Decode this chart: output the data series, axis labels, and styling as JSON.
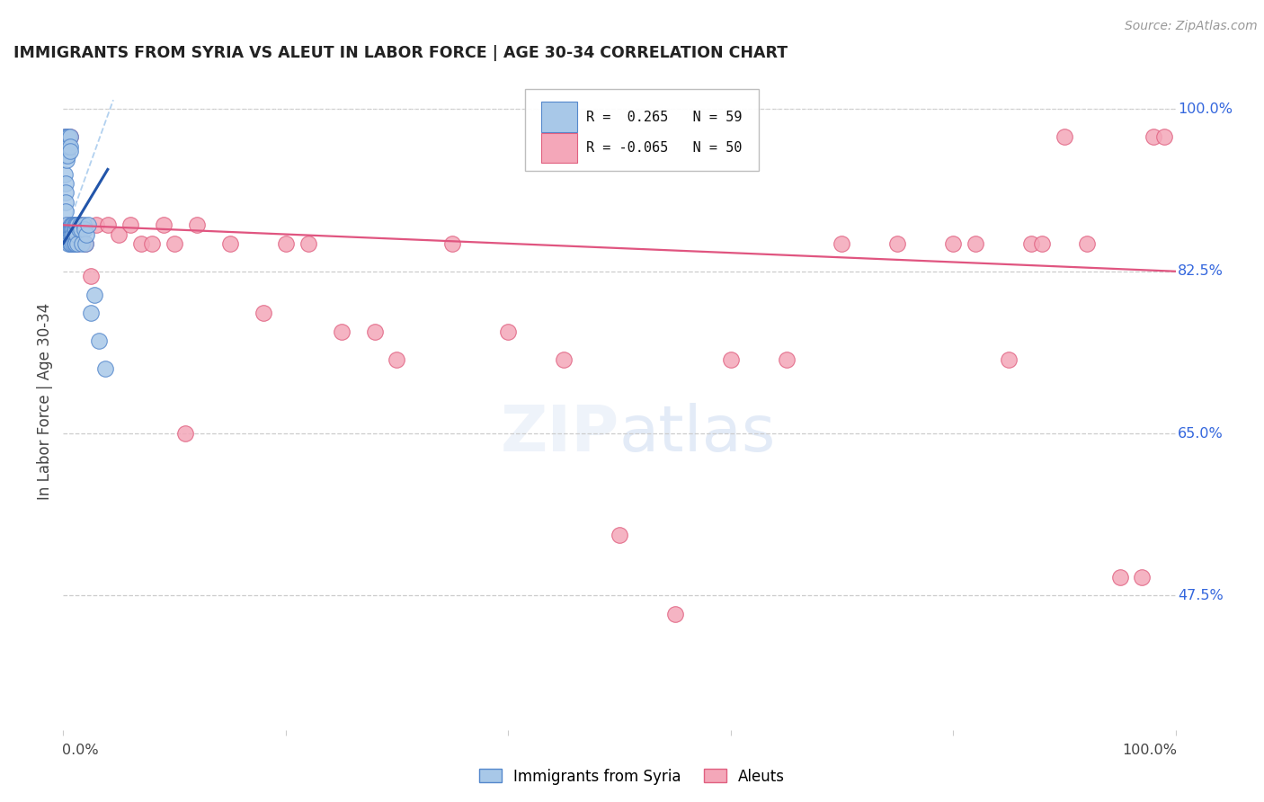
{
  "title": "IMMIGRANTS FROM SYRIA VS ALEUT IN LABOR FORCE | AGE 30-34 CORRELATION CHART",
  "source": "Source: ZipAtlas.com",
  "ylabel": "In Labor Force | Age 30-34",
  "legend_label1": "Immigrants from Syria",
  "legend_label2": "Aleuts",
  "R_syria": 0.265,
  "N_syria": 59,
  "R_aleut": -0.065,
  "N_aleut": 50,
  "xmin": 0.0,
  "xmax": 1.0,
  "ymin": 0.33,
  "ymax": 1.04,
  "right_yticks": [
    1.0,
    0.825,
    0.65,
    0.475
  ],
  "right_yticklabels": [
    "100.0%",
    "82.5%",
    "65.0%",
    "47.5%"
  ],
  "color_syria": "#A8C8E8",
  "color_aleut": "#F4A7B9",
  "color_syria_edge": "#5588CC",
  "color_aleut_edge": "#E06080",
  "color_syria_line": "#2255AA",
  "color_aleut_line": "#E05580",
  "color_ref_line": "#AACCEE",
  "background": "#FFFFFF",
  "syria_x": [
    0.001,
    0.001,
    0.001,
    0.002,
    0.002,
    0.002,
    0.002,
    0.003,
    0.003,
    0.003,
    0.003,
    0.004,
    0.004,
    0.004,
    0.004,
    0.005,
    0.005,
    0.005,
    0.005,
    0.006,
    0.006,
    0.006,
    0.006,
    0.006,
    0.007,
    0.007,
    0.007,
    0.007,
    0.008,
    0.008,
    0.008,
    0.009,
    0.009,
    0.009,
    0.009,
    0.01,
    0.01,
    0.01,
    0.01,
    0.011,
    0.011,
    0.011,
    0.012,
    0.012,
    0.013,
    0.013,
    0.014,
    0.015,
    0.016,
    0.017,
    0.018,
    0.019,
    0.02,
    0.021,
    0.022,
    0.025,
    0.028,
    0.032,
    0.038
  ],
  "syria_y": [
    0.97,
    0.95,
    0.93,
    0.92,
    0.91,
    0.9,
    0.89,
    0.97,
    0.955,
    0.945,
    0.875,
    0.96,
    0.95,
    0.87,
    0.86,
    0.97,
    0.96,
    0.87,
    0.855,
    0.97,
    0.96,
    0.955,
    0.87,
    0.855,
    0.875,
    0.87,
    0.865,
    0.855,
    0.875,
    0.87,
    0.865,
    0.875,
    0.87,
    0.865,
    0.855,
    0.875,
    0.87,
    0.865,
    0.855,
    0.875,
    0.87,
    0.855,
    0.875,
    0.865,
    0.875,
    0.855,
    0.87,
    0.875,
    0.87,
    0.855,
    0.875,
    0.87,
    0.855,
    0.865,
    0.875,
    0.78,
    0.8,
    0.75,
    0.72
  ],
  "aleut_x": [
    0.002,
    0.003,
    0.004,
    0.005,
    0.006,
    0.007,
    0.008,
    0.01,
    0.012,
    0.013,
    0.015,
    0.02,
    0.025,
    0.03,
    0.04,
    0.05,
    0.06,
    0.07,
    0.08,
    0.09,
    0.1,
    0.12,
    0.15,
    0.18,
    0.2,
    0.22,
    0.25,
    0.3,
    0.35,
    0.4,
    0.45,
    0.5,
    0.55,
    0.6,
    0.65,
    0.7,
    0.75,
    0.8,
    0.82,
    0.85,
    0.87,
    0.88,
    0.9,
    0.92,
    0.95,
    0.97,
    0.98,
    0.99,
    0.11,
    0.28
  ],
  "aleut_y": [
    0.97,
    0.97,
    0.875,
    0.97,
    0.97,
    0.855,
    0.855,
    0.875,
    0.875,
    0.855,
    0.875,
    0.855,
    0.82,
    0.875,
    0.875,
    0.865,
    0.875,
    0.855,
    0.855,
    0.875,
    0.855,
    0.875,
    0.855,
    0.78,
    0.855,
    0.855,
    0.76,
    0.73,
    0.855,
    0.76,
    0.73,
    0.54,
    0.455,
    0.73,
    0.73,
    0.855,
    0.855,
    0.855,
    0.855,
    0.73,
    0.855,
    0.855,
    0.97,
    0.855,
    0.495,
    0.495,
    0.97,
    0.97,
    0.65,
    0.76
  ],
  "syria_line_x": [
    0.0,
    0.04
  ],
  "syria_line_y": [
    0.855,
    0.935
  ],
  "aleut_line_x": [
    0.0,
    1.0
  ],
  "aleut_line_y": [
    0.875,
    0.825
  ],
  "ref_line_x": [
    0.0,
    0.045
  ],
  "ref_line_y": [
    0.86,
    1.01
  ]
}
